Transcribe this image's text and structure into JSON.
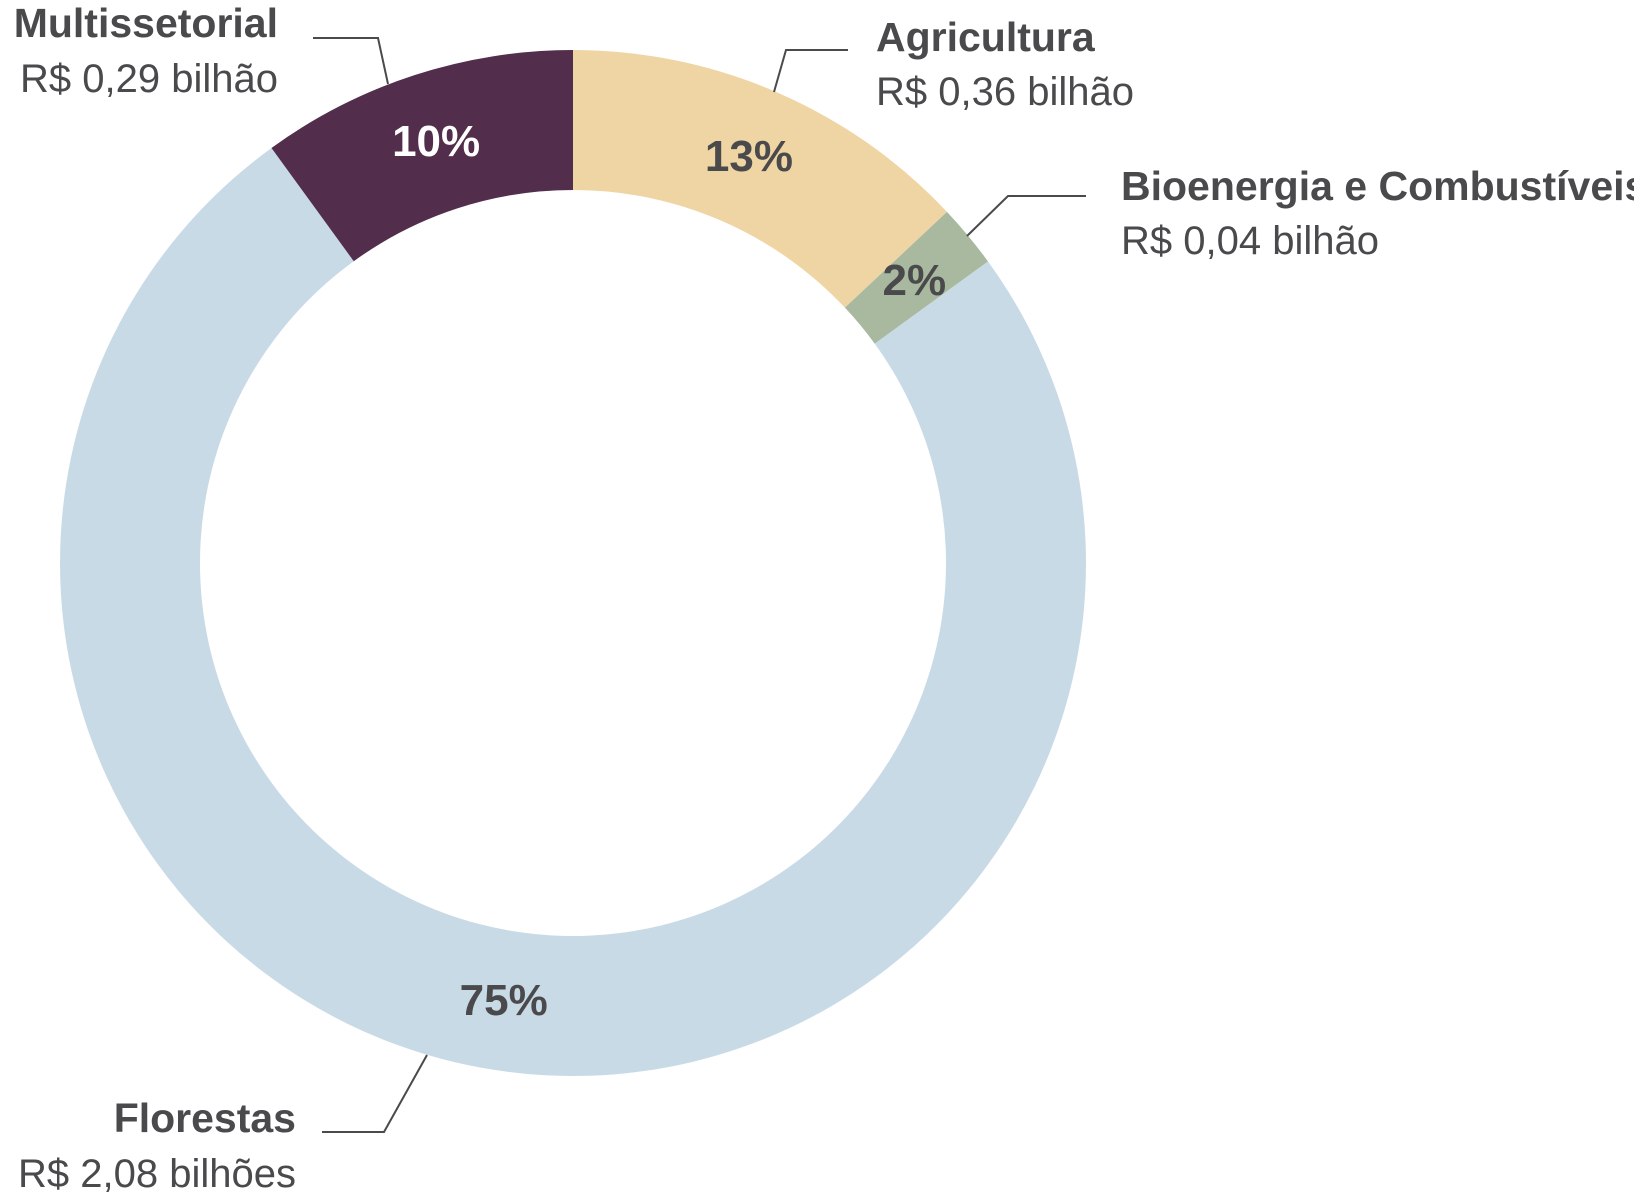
{
  "chart_data": {
    "type": "pie",
    "variant": "donut",
    "title": "",
    "slices": [
      {
        "label": "Agricultura",
        "value_text": "R$ 0,36 bilhão",
        "value": 0.36,
        "percent": 13,
        "percent_label": "13%",
        "color": "#efd5a3",
        "pct_color": "#4a4a4c"
      },
      {
        "label": "Bioenergia e Combustíveis",
        "value_text": "R$ 0,04 bilhão",
        "value": 0.04,
        "percent": 2,
        "percent_label": "2%",
        "color": "#a9b9a0",
        "pct_color": "#4a4a4c"
      },
      {
        "label": "Florestas",
        "value_text": "R$ 2,08 bilhões",
        "value": 2.08,
        "percent": 75,
        "percent_label": "75%",
        "color": "#c9dae7",
        "pct_color": "#4a4a4c"
      },
      {
        "label": "Multissetorial",
        "value_text": "R$ 0,29 bilhão",
        "value": 0.29,
        "percent": 10,
        "percent_label": "10%",
        "color": "#522d4c",
        "pct_color": "#ffffff"
      }
    ]
  }
}
